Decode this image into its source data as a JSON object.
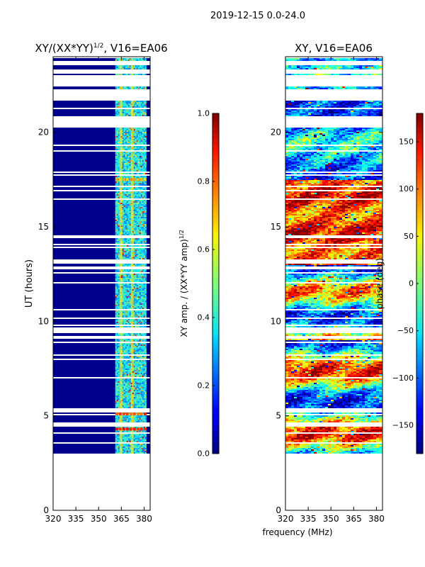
{
  "figure": {
    "suptitle": "2019-12-15 0.0-24.0",
    "shared_xlabel": "frequency (MHz)"
  },
  "chart_data": [
    {
      "type": "heatmap",
      "title_main": "XY/(XX*YY)",
      "title_exp": "1/2",
      "title_rest": ", V16=EA06",
      "xlim": [
        320,
        384
      ],
      "ylim": [
        0,
        24
      ],
      "xticks": [
        320,
        335,
        350,
        365,
        380
      ],
      "xtick_labels": [
        "320",
        "335",
        "350",
        "365",
        "380"
      ],
      "yticks": [
        0,
        5,
        10,
        15,
        20
      ],
      "ytick_labels": [
        "0",
        "5",
        "10",
        "15",
        "20"
      ],
      "ylabel": "UT (hours)",
      "data_start_hour": 3.0,
      "rfi_band_mhz": [
        361,
        381
      ],
      "colorbar": {
        "range": [
          0.0,
          1.0
        ],
        "ticks": [
          0.0,
          0.2,
          0.4,
          0.6,
          0.8,
          1.0
        ],
        "tick_labels": [
          "0.0",
          "0.2",
          "0.4",
          "0.6",
          "0.8",
          "1.0"
        ],
        "label_main": "XY amp. / (XX*YY amp)",
        "label_exp": "1/2",
        "colormap": "jet"
      }
    },
    {
      "type": "heatmap",
      "title_main": "XY, V16=EA06",
      "xlim": [
        320,
        384
      ],
      "ylim": [
        0,
        24
      ],
      "xticks": [
        320,
        335,
        350,
        365,
        380
      ],
      "xtick_labels": [
        "320",
        "335",
        "350",
        "365",
        "380"
      ],
      "yticks": [
        0,
        5,
        10,
        15,
        20
      ],
      "ytick_labels": [
        "0",
        "5",
        "10",
        "15",
        "20"
      ],
      "data_start_hour": 3.0,
      "colorbar": {
        "range": [
          -180,
          180
        ],
        "ticks": [
          -150,
          -100,
          -50,
          0,
          50,
          100,
          150
        ],
        "tick_labels": [
          "−150",
          "−100",
          "−50",
          "0",
          "50",
          "100",
          "150"
        ],
        "label_main": "phase (deg)",
        "colormap": "jet"
      }
    }
  ]
}
